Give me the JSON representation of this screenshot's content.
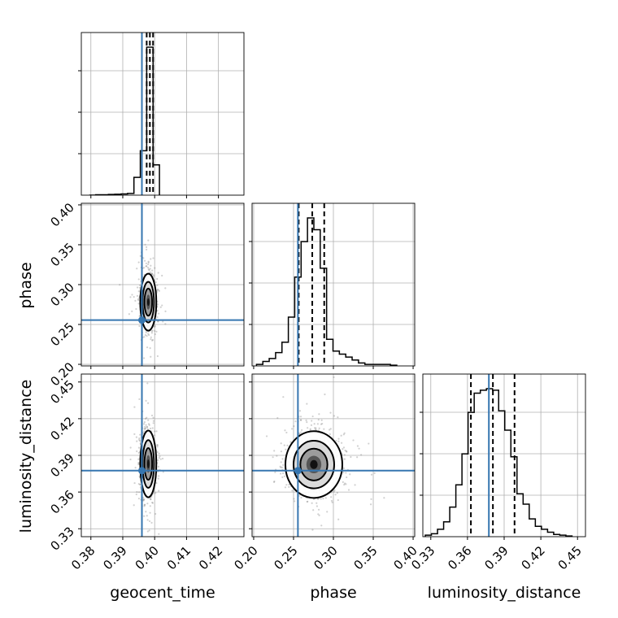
{
  "chart_data": {
    "type": "corner",
    "parameters": [
      "geocent_time",
      "phase",
      "luminosity_distance"
    ],
    "axis_labels": {
      "geocent_time": "geocent_time",
      "phase": "phase",
      "luminosity_distance": "luminosity_distance"
    },
    "ranges": {
      "geocent_time": [
        0.377,
        0.428
      ],
      "phase": [
        0.198,
        0.402
      ],
      "luminosity_distance": [
        0.3235,
        0.4565
      ]
    },
    "ticks": {
      "geocent_time": [
        "0.38",
        "0.39",
        "0.40",
        "0.41",
        "0.42"
      ],
      "phase": [
        "0.20",
        "0.25",
        "0.30",
        "0.35",
        "0.40"
      ],
      "luminosity_distance": [
        "0.33",
        "0.36",
        "0.39",
        "0.42",
        "0.45"
      ]
    },
    "injection": {
      "geocent_time": 0.396,
      "phase": 0.2555,
      "luminosity_distance": 0.3775
    },
    "quantiles": {
      "geocent_time": [
        0.3975,
        0.3985,
        0.3995
      ],
      "phase": [
        0.2565,
        0.2735,
        0.2885
      ],
      "luminosity_distance": [
        0.3628,
        0.3808,
        0.3985
      ]
    },
    "histograms": {
      "geocent_time": {
        "edges": [
          0.3795,
          0.3815,
          0.3835,
          0.3855,
          0.3875,
          0.3895,
          0.3915,
          0.3935,
          0.3955,
          0.3975,
          0.3995,
          0.4015
        ],
        "counts": [
          0,
          0.003,
          0.003,
          0.005,
          0.006,
          0.008,
          0.012,
          0.12,
          0.3,
          1.0,
          0.205
        ]
      },
      "phase": {
        "edges": [
          0.2035,
          0.2115,
          0.2195,
          0.2275,
          0.2355,
          0.2435,
          0.2515,
          0.2595,
          0.2675,
          0.2755,
          0.2835,
          0.2915,
          0.2995,
          0.3075,
          0.3155,
          0.3235,
          0.3315,
          0.3395,
          0.3475,
          0.3555,
          0.3635,
          0.3715,
          0.3795
        ],
        "counts": [
          0.01,
          0.03,
          0.05,
          0.09,
          0.16,
          0.33,
          0.6,
          0.84,
          1.0,
          0.92,
          0.66,
          0.18,
          0.1,
          0.08,
          0.06,
          0.04,
          0.02,
          0.01,
          0.01,
          0.01,
          0.01,
          0.005
        ]
      },
      "luminosity_distance": {
        "edges": [
          0.3255,
          0.3305,
          0.3355,
          0.3405,
          0.3455,
          0.3505,
          0.3555,
          0.3605,
          0.3655,
          0.3705,
          0.3755,
          0.3805,
          0.3855,
          0.3905,
          0.3955,
          0.4005,
          0.4055,
          0.4105,
          0.4155,
          0.4205,
          0.4255,
          0.4305,
          0.4355,
          0.4405,
          0.4455
        ],
        "counts": [
          0.01,
          0.02,
          0.05,
          0.1,
          0.2,
          0.35,
          0.56,
          0.84,
          0.97,
          0.99,
          1.0,
          0.99,
          0.85,
          0.72,
          0.54,
          0.29,
          0.22,
          0.12,
          0.07,
          0.05,
          0.03,
          0.015,
          0.01,
          0.005
        ]
      }
    },
    "contour_centers": {
      "geocent_time_phase": [
        0.398,
        0.278
      ],
      "geocent_time_luminosity_distance": [
        0.398,
        0.383
      ],
      "phase_luminosity_distance": [
        0.2755,
        0.3825
      ]
    },
    "grid": true,
    "colors": {
      "histogram": "#000000",
      "injection": "#3676b0",
      "points": "#7a7a7a",
      "grid": "#b0b0b0"
    }
  }
}
